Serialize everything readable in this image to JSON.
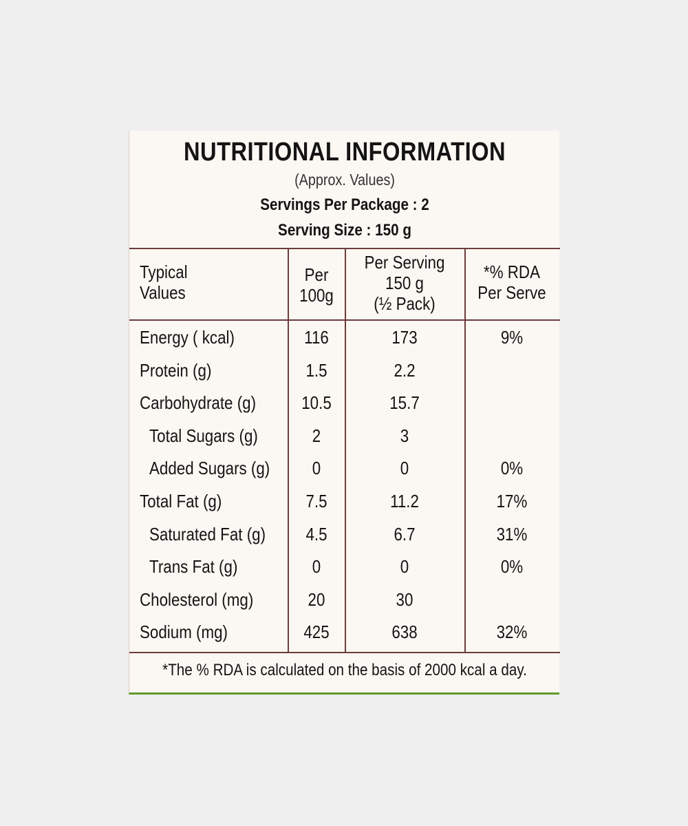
{
  "header": {
    "title": "NUTRITIONAL INFORMATION",
    "subtitle": "(Approx. Values)",
    "servings_per_package": "Servings Per Package : 2",
    "serving_size": "Serving Size : 150 g"
  },
  "table": {
    "columns": [
      [
        "Typical",
        "Values"
      ],
      [
        "Per",
        "100g"
      ],
      [
        "Per Serving",
        "150 g",
        "(½ Pack)"
      ],
      [
        "*% RDA",
        "Per Serve"
      ]
    ],
    "rows": [
      {
        "name": "Energy ( kcal)",
        "per100": "116",
        "perServing": "173",
        "rda": "9%"
      },
      {
        "name": "Protein (g)",
        "per100": "1.5",
        "perServing": "2.2",
        "rda": ""
      },
      {
        "name": "Carbohydrate (g)",
        "per100": "10.5",
        "perServing": "15.7",
        "rda": ""
      },
      {
        "name": "Total Sugars (g)",
        "per100": "2",
        "perServing": "3",
        "rda": ""
      },
      {
        "name": "Added Sugars (g)",
        "per100": "0",
        "perServing": "0",
        "rda": "0%"
      },
      {
        "name": "Total Fat (g)",
        "per100": "7.5",
        "perServing": "11.2",
        "rda": "17%"
      },
      {
        "name": "Saturated Fat (g)",
        "per100": "4.5",
        "perServing": "6.7",
        "rda": "31%"
      },
      {
        "name": "Trans Fat (g)",
        "per100": "0",
        "perServing": "0",
        "rda": "0%"
      },
      {
        "name": "Cholesterol (mg)",
        "per100": "20",
        "perServing": "30",
        "rda": ""
      },
      {
        "name": "Sodium (mg)",
        "per100": "425",
        "perServing": "638",
        "rda": "32%"
      }
    ]
  },
  "footnote": "*The % RDA is calculated on the basis of 2000 kcal a day."
}
